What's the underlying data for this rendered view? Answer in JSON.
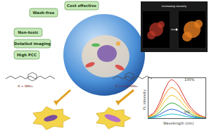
{
  "features": [
    "Wash-free",
    "Cost effective",
    "Non-toxic",
    "Detailed imaging",
    "High PCC"
  ],
  "structures": [
    {
      "label": "R = NMe₂"
    },
    {
      "label": "R = C₆H₄NMe₂"
    }
  ],
  "imaging_arrow": "Increasing viscosity",
  "chart_data": {
    "type": "line",
    "xlabel": "Wavelength (nm)",
    "ylabel": "FL intensity",
    "x": [
      560,
      580,
      600,
      620,
      640,
      660,
      680,
      700,
      720,
      740,
      760
    ],
    "series": [
      {
        "color": "#d62728",
        "values": [
          5,
          15,
          40,
          75,
          95,
          85,
          60,
          35,
          18,
          8,
          3
        ]
      },
      {
        "color": "#ff7f0e",
        "values": [
          4,
          12,
          32,
          60,
          76,
          68,
          48,
          28,
          14,
          6,
          2
        ]
      },
      {
        "color": "#e6c619",
        "values": [
          3,
          9,
          24,
          45,
          57,
          51,
          36,
          21,
          11,
          5,
          2
        ]
      },
      {
        "color": "#2ca02c",
        "values": [
          2,
          6,
          16,
          30,
          38,
          34,
          24,
          14,
          7,
          3,
          1
        ]
      },
      {
        "color": "#1f5fd6",
        "values": [
          1,
          4,
          10,
          18,
          23,
          20,
          14,
          8,
          4,
          2,
          1
        ]
      },
      {
        "color": "#17becf",
        "values": [
          1,
          2,
          5,
          9,
          11,
          10,
          7,
          4,
          2,
          1,
          0
        ]
      }
    ],
    "annotations": [
      "100%",
      "0%"
    ],
    "xlim": [
      560,
      760
    ],
    "ylim": [
      0,
      100
    ],
    "tick_labels": false
  }
}
